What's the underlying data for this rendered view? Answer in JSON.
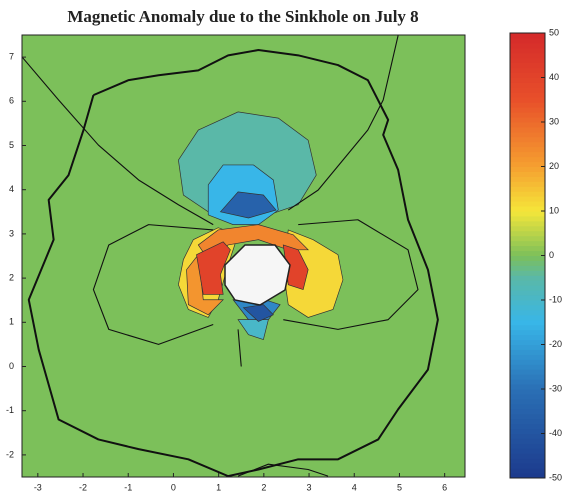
{
  "chart_data": {
    "type": "contour",
    "title": "Magnetic Anomaly due to the Sinkhole on July 8",
    "xlim": [
      -3.35,
      6.45
    ],
    "ylim": [
      -2.5,
      7.5
    ],
    "xticks": [
      -3,
      -2,
      -1,
      0,
      1,
      2,
      3,
      4,
      5,
      6
    ],
    "yticks": [
      -2,
      -1,
      0,
      1,
      2,
      3,
      4,
      5,
      6,
      7
    ],
    "colormap": "jet",
    "colorbar": {
      "lim": [
        -50,
        50
      ],
      "ticks": [
        -50,
        -40,
        -30,
        -20,
        -10,
        0,
        10,
        20,
        30,
        40,
        50
      ]
    },
    "contours": [
      {
        "level": 0,
        "x": [
          -3.35,
          6.45,
          6.45,
          -3.35
        ],
        "y": [
          -2.5,
          -2.5,
          7.5,
          7.5
        ]
      },
      {
        "level": -5,
        "x": [
          0.11,
          0.55,
          1.43,
          2.32,
          2.98,
          3.16,
          2.76,
          2.1,
          1.43,
          0.77,
          0.22
        ],
        "y": [
          4.67,
          5.35,
          5.76,
          5.62,
          5.12,
          4.33,
          3.66,
          3.43,
          3.32,
          3.5,
          3.88
        ]
      },
      {
        "level": -15,
        "x": [
          0.77,
          1.1,
          1.77,
          2.21,
          2.32,
          1.88,
          1.32,
          0.77
        ],
        "y": [
          4.11,
          4.56,
          4.56,
          4.22,
          3.54,
          3.21,
          3.21,
          3.43
        ]
      },
      {
        "level": -35,
        "x": [
          1.04,
          1.43,
          1.99,
          2.27,
          1.66
        ],
        "y": [
          3.5,
          3.95,
          3.88,
          3.54,
          3.36
        ]
      },
      {
        "level": 12,
        "x": [
          0.22,
          0.44,
          0.99,
          1.43,
          1.21,
          0.99,
          0.77,
          0.33,
          0.11
        ],
        "y": [
          2.42,
          2.87,
          3.14,
          2.98,
          2.3,
          1.51,
          1.11,
          1.29,
          1.85
        ]
      },
      {
        "level": 12,
        "x": [
          2.54,
          3.09,
          3.64,
          3.75,
          3.53,
          2.98,
          2.54,
          2.43
        ],
        "y": [
          3.09,
          2.87,
          2.53,
          1.96,
          1.29,
          1.11,
          1.4,
          2.19
        ]
      },
      {
        "level": 25,
        "x": [
          0.55,
          0.99,
          1.88,
          2.65,
          2.98,
          2.54,
          1.88,
          1.21,
          0.77
        ],
        "y": [
          2.75,
          3.09,
          3.21,
          2.98,
          2.64,
          2.64,
          2.87,
          2.75,
          2.42
        ]
      },
      {
        "level": 22,
        "x": [
          0.29,
          0.55,
          0.66,
          1.1,
          0.77,
          0.33
        ],
        "y": [
          2.19,
          2.53,
          1.51,
          1.51,
          1.17,
          1.4
        ]
      },
      {
        "level": 40,
        "x": [
          0.51,
          1.1,
          1.26,
          1.04,
          1.1,
          0.66
        ],
        "y": [
          2.53,
          2.82,
          2.64,
          2.08,
          1.63,
          1.63
        ]
      },
      {
        "level": 40,
        "x": [
          2.43,
          2.76,
          2.98,
          2.87,
          2.54,
          2.49
        ],
        "y": [
          2.75,
          2.64,
          2.19,
          1.74,
          1.85,
          2.3
        ]
      },
      {
        "level": -10,
        "x": [
          1.43,
          2.1,
          1.99,
          1.66
        ],
        "y": [
          1.06,
          1.06,
          0.61,
          0.72
        ]
      },
      {
        "level": -25,
        "x": [
          1.32,
          1.88,
          2.36,
          2.1,
          1.66
        ],
        "y": [
          1.51,
          1.56,
          1.4,
          1.06,
          1.06
        ]
      },
      {
        "level": -40,
        "x": [
          1.55,
          1.99,
          2.21,
          1.88
        ],
        "y": [
          1.33,
          1.4,
          1.17,
          1.02
        ]
      }
    ],
    "contour_lines": [
      {
        "level": 0,
        "x": [
          -3.38,
          -2.54,
          -1.66,
          -0.77,
          0.11,
          0.88
        ],
        "y": [
          7.04,
          6.03,
          5.01,
          4.22,
          3.66,
          3.21
        ]
      },
      {
        "level": 0,
        "x": [
          4.97,
          4.64,
          4.3,
          3.2,
          2.54
        ],
        "y": [
          7.49,
          6.03,
          5.35,
          3.99,
          3.54
        ]
      },
      {
        "level": 0,
        "x": [
          -1.77,
          -0.99,
          -0.33,
          0.55,
          1.21,
          1.88,
          2.76,
          3.64,
          4.3,
          4.75,
          4.64,
          4.97,
          5.19,
          5.63,
          5.85,
          5.63,
          4.97,
          4.53,
          3.64,
          2.76,
          1.88,
          1.21,
          0.33,
          -0.77,
          -1.66,
          -2.54,
          -2.98,
          -3.2,
          -2.65,
          -2.76,
          -2.32,
          -1.99,
          -1.77
        ],
        "y": [
          6.14,
          6.48,
          6.59,
          6.7,
          7.04,
          7.16,
          7.04,
          6.82,
          6.48,
          5.58,
          5.24,
          4.45,
          3.32,
          2.19,
          1.06,
          -0.07,
          -0.97,
          -1.65,
          -2.1,
          -2.1,
          -2.33,
          -2.48,
          -2.1,
          -1.87,
          -1.65,
          -1.2,
          0.38,
          1.51,
          2.87,
          3.77,
          4.33,
          5.35,
          6.14
        ]
      },
      {
        "level": 0,
        "x": [
          1.43,
          2.1,
          2.98,
          3.42
        ],
        "y": [
          -2.48,
          -2.21,
          -2.33,
          -2.48
        ]
      },
      {
        "level": 0,
        "x": [
          0.88,
          -0.55,
          -1.43,
          -1.77,
          -1.43,
          -0.33,
          0.88
        ],
        "y": [
          3.09,
          3.21,
          2.75,
          1.74,
          0.84,
          0.5,
          0.95
        ]
      },
      {
        "level": 0,
        "x": [
          2.76,
          4.08,
          5.19,
          5.41,
          4.75,
          3.64,
          2.43
        ],
        "y": [
          3.21,
          3.32,
          2.64,
          1.74,
          1.06,
          0.84,
          1.06
        ]
      },
      {
        "level": 0,
        "x": [
          1.43,
          1.5
        ],
        "y": [
          0.84,
          0.0
        ]
      }
    ]
  }
}
